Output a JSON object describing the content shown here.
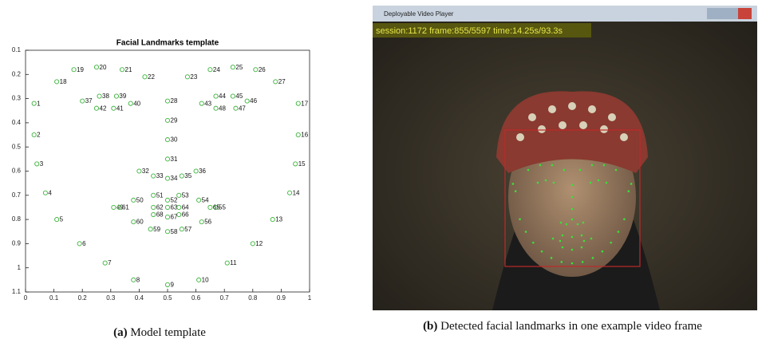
{
  "chart_data": {
    "type": "scatter",
    "title": "Facial Landmarks template",
    "x": [
      0.03,
      0.03,
      0.04,
      0.07,
      0.11,
      0.19,
      0.28,
      0.38,
      0.5,
      0.61,
      0.71,
      0.8,
      0.87,
      0.93,
      0.95,
      0.96,
      0.96,
      0.11,
      0.17,
      0.25,
      0.34,
      0.42,
      0.57,
      0.65,
      0.73,
      0.81,
      0.88,
      0.5,
      0.5,
      0.5,
      0.5,
      0.4,
      0.45,
      0.5,
      0.55,
      0.6,
      0.2,
      0.26,
      0.32,
      0.37,
      0.31,
      0.25,
      0.62,
      0.67,
      0.73,
      0.78,
      0.74,
      0.67,
      0.31,
      0.38,
      0.45,
      0.5,
      0.54,
      0.61,
      0.67,
      0.62,
      0.55,
      0.5,
      0.44,
      0.38,
      0.33,
      0.45,
      0.5,
      0.54,
      0.65,
      0.54,
      0.5,
      0.45
    ],
    "y": [
      0.32,
      0.45,
      0.57,
      0.69,
      0.8,
      0.9,
      0.98,
      1.05,
      1.07,
      1.05,
      0.98,
      0.9,
      0.8,
      0.69,
      0.57,
      0.45,
      0.32,
      0.23,
      0.18,
      0.17,
      0.18,
      0.21,
      0.21,
      0.18,
      0.17,
      0.18,
      0.23,
      0.31,
      0.39,
      0.47,
      0.55,
      0.6,
      0.62,
      0.63,
      0.62,
      0.6,
      0.31,
      0.29,
      0.29,
      0.32,
      0.34,
      0.34,
      0.32,
      0.29,
      0.29,
      0.31,
      0.34,
      0.34,
      0.75,
      0.72,
      0.7,
      0.72,
      0.7,
      0.72,
      0.75,
      0.81,
      0.84,
      0.85,
      0.84,
      0.81,
      0.75,
      0.75,
      0.75,
      0.75,
      0.75,
      0.78,
      0.79,
      0.78
    ],
    "labels": [
      "1",
      "2",
      "3",
      "4",
      "5",
      "6",
      "7",
      "8",
      "9",
      "10",
      "11",
      "12",
      "13",
      "14",
      "15",
      "16",
      "17",
      "18",
      "19",
      "20",
      "21",
      "22",
      "23",
      "24",
      "25",
      "26",
      "27",
      "28",
      "29",
      "30",
      "31",
      "32",
      "33",
      "34",
      "35",
      "36",
      "37",
      "38",
      "39",
      "40",
      "41",
      "42",
      "43",
      "44",
      "45",
      "46",
      "47",
      "48",
      "49",
      "50",
      "51",
      "52",
      "53",
      "54",
      "55",
      "56",
      "57",
      "58",
      "59",
      "60",
      "61",
      "62",
      "63",
      "64",
      "65",
      "66",
      "67",
      "68"
    ],
    "color": "#3cb43c",
    "xlim": [
      0,
      1
    ],
    "xticks": [
      0,
      0.1,
      0.2,
      0.3,
      0.4,
      0.5,
      0.6,
      0.7,
      0.8,
      0.9,
      1
    ],
    "ylim": [
      0.1,
      1.1
    ],
    "yticks": [
      0.1,
      0.2,
      0.3,
      0.4,
      0.5,
      0.6,
      0.7,
      0.8,
      0.9,
      1,
      1.1
    ],
    "y_inverted": true,
    "grid": false
  },
  "photo": {
    "window_title": "Deployable Video Player",
    "overlay": "session:1172 frame:855/5597 time:14.25s/93.3s"
  },
  "captions": {
    "a": {
      "label": "(a)",
      "text": "Model template"
    },
    "b": {
      "label": "(b)",
      "text": "Detected facial landmarks in one example video frame"
    }
  }
}
